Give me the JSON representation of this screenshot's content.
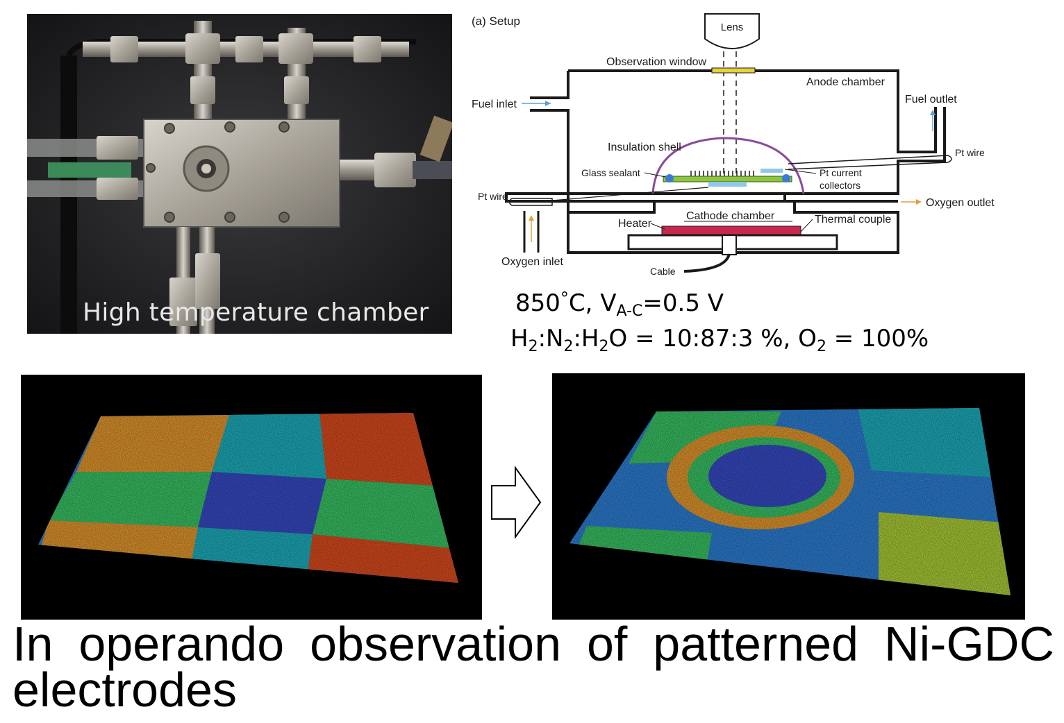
{
  "photo": {
    "caption": "High temperature chamber"
  },
  "setup": {
    "panel_label": "(a) Setup",
    "labels": {
      "lens": "Lens",
      "observation_window": "Observation window",
      "anode_chamber": "Anode chamber",
      "fuel_inlet": "Fuel inlet",
      "fuel_outlet": "Fuel outlet",
      "insulation_shell": "Insulation shell",
      "pt_wire_right": "Pt wire",
      "glass_sealant": "Glass sealant",
      "pt_current": "Pt current",
      "collectors": "collectors",
      "pt_wire_left": "Pt wire",
      "oxygen_outlet": "Oxygen outlet",
      "cathode_chamber": "Cathode chamber",
      "heater": "Heater",
      "thermal_couple": "Thermal couple",
      "oxygen_inlet": "Oxygen inlet",
      "cable": "Cable"
    },
    "colors": {
      "glass_sealant": "#3a7bd5",
      "electrolyte": "#8cc63f",
      "heater": "#c8284d",
      "window": "#e6d23a",
      "insulation": "#8a4a9e",
      "fuel_arrow": "#5aa0d8",
      "oxygen_arrow": "#e0a040"
    }
  },
  "conditions": {
    "line1_prefix": "850",
    "line1_deg": "°",
    "line1_c": "C, V",
    "line1_sub": "A-C",
    "line1_suffix": "=0.5 V",
    "line2": {
      "h": "H",
      "s1": "2",
      "n": ":N",
      "s2": "2",
      "h2o_h": ":H",
      "s3": "2",
      "rest": "O = 10:87:3 %, O",
      "s4": "2",
      "end": " = 100%"
    }
  },
  "surfaces": {
    "colormap": [
      "#3a4fd0",
      "#2f86e0",
      "#1fb8c8",
      "#3ccf6a",
      "#b5d93a",
      "#f0a030",
      "#e85020"
    ]
  },
  "arrow": {
    "icon": "right-arrow-icon"
  },
  "title": "In operando observation of patterned Ni-GDC electrodes"
}
